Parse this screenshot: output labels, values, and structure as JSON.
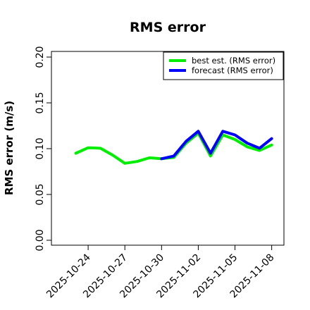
{
  "chart_data": {
    "type": "line",
    "title": "RMS error",
    "xlabel": "",
    "ylabel": "RMS error (m/s)",
    "ylim": [
      0.0,
      0.21
    ],
    "yticks": [
      0.0,
      0.05,
      0.1,
      0.15,
      0.2
    ],
    "ytick_labels": [
      "0.00",
      "0.05",
      "0.10",
      "0.15",
      "0.20"
    ],
    "xlim": [
      "2025-10-21",
      "2025-11-09"
    ],
    "xticks": [
      "2025-10-24",
      "2025-10-27",
      "2025-10-30",
      "2025-11-02",
      "2025-11-05",
      "2025-11-08"
    ],
    "highlight_tick": "2025-10-30",
    "highlight_color": "#228B22",
    "grid": false,
    "legend_position": "top-right",
    "series": [
      {
        "name": "best est. (RMS error)",
        "color": "#00ee00",
        "x": [
          "2025-10-23",
          "2025-10-24",
          "2025-10-25",
          "2025-10-26",
          "2025-10-27",
          "2025-10-28",
          "2025-10-29",
          "2025-10-30",
          "2025-10-31",
          "2025-11-01",
          "2025-11-02",
          "2025-11-03",
          "2025-11-04",
          "2025-11-05",
          "2025-11-06",
          "2025-11-07",
          "2025-11-08"
        ],
        "values": [
          0.095,
          0.101,
          0.1005,
          0.093,
          0.084,
          0.086,
          0.09,
          0.089,
          0.0905,
          0.106,
          0.117,
          0.092,
          0.115,
          0.11,
          0.102,
          0.098,
          0.104
        ]
      },
      {
        "name": "forecast (RMS error)",
        "color": "#0000ff",
        "x": [
          "2025-10-30",
          "2025-10-31",
          "2025-11-01",
          "2025-11-02",
          "2025-11-03",
          "2025-11-04",
          "2025-11-05",
          "2025-11-06",
          "2025-11-07",
          "2025-11-08"
        ],
        "values": [
          0.089,
          0.092,
          0.108,
          0.119,
          0.095,
          0.119,
          0.115,
          0.106,
          0.1005,
          0.111
        ]
      }
    ]
  }
}
